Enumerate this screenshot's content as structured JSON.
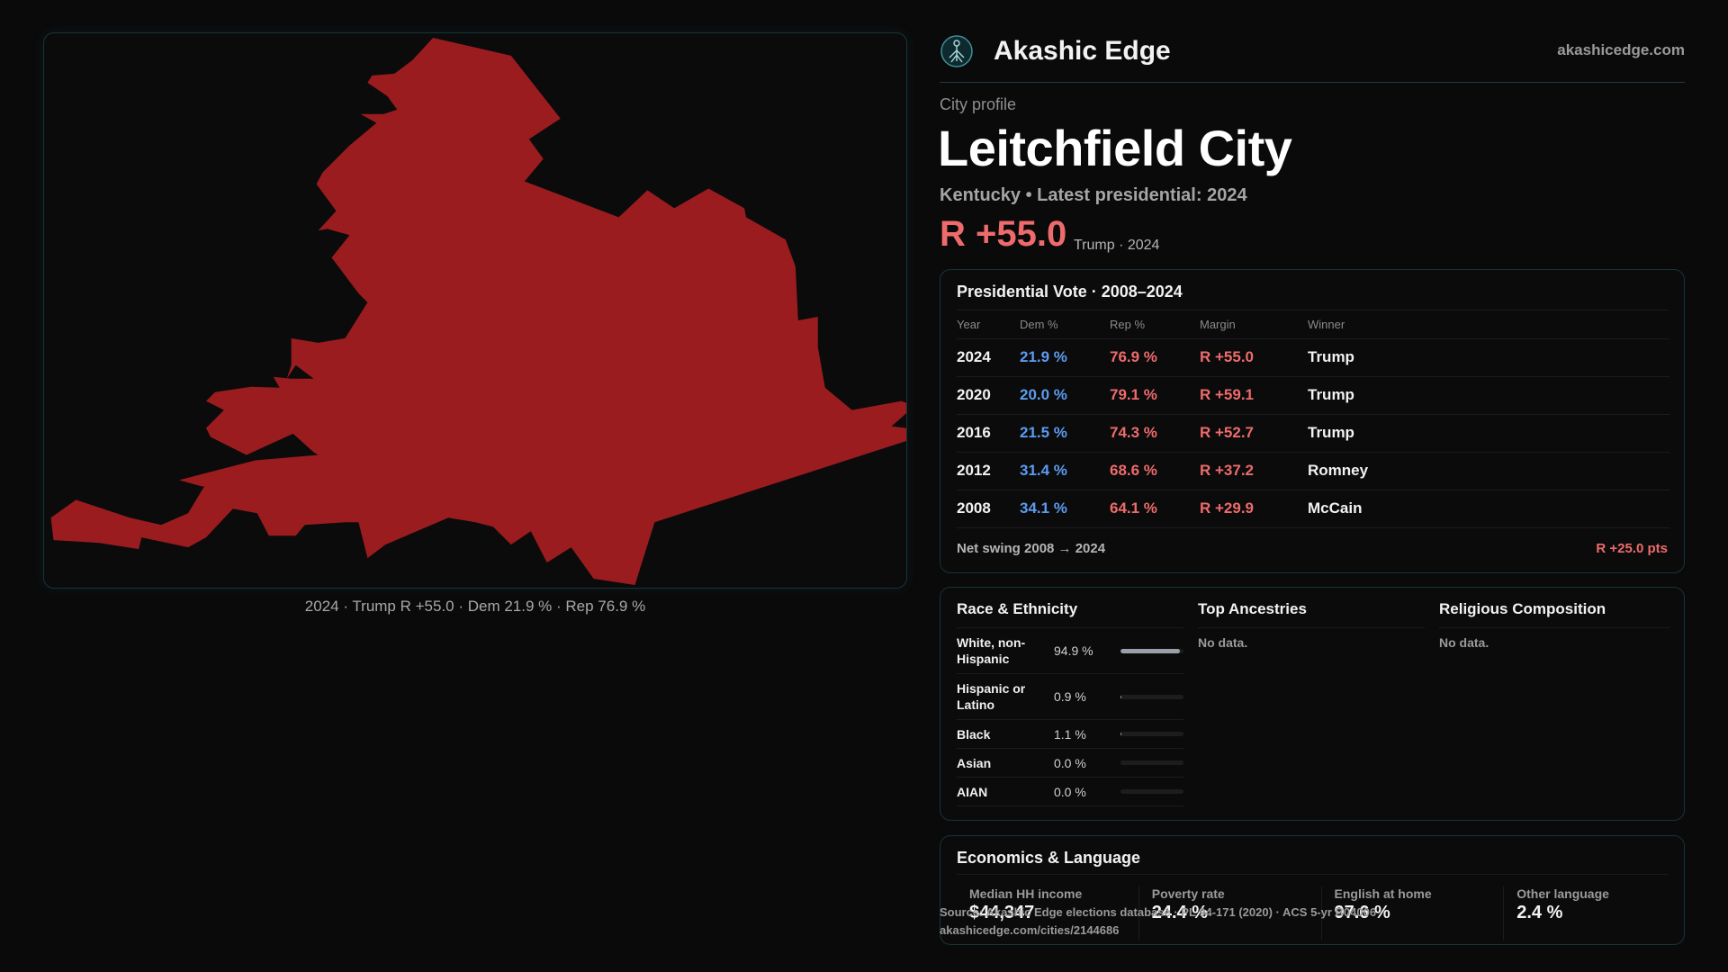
{
  "map": {
    "caption": "2024 · Trump R +55.0 · Dem 21.9 % · Rep 76.9 %",
    "fill_color": "#9b1c1f"
  },
  "header": {
    "logo_icon": "tree-of-life-icon",
    "brand": "Akashic Edge",
    "site": "akashicedge.com"
  },
  "profile": {
    "kicker": "City profile",
    "title": "Leitchfield City",
    "subtitle": "Kentucky • Latest presidential: 2024",
    "margin": "R +55.0",
    "margin_detail": "Trump · 2024",
    "rep_color": "#ee6b6b",
    "dem_color": "#5b9cf0"
  },
  "vote": {
    "title": "Presidential Vote · 2008–2024",
    "headers": [
      "Year",
      "Dem %",
      "Rep %",
      "Margin",
      "Winner"
    ],
    "rows": [
      {
        "year": "2024",
        "dem": "21.9 %",
        "rep": "76.9 %",
        "margin": "R +55.0",
        "winner": "Trump"
      },
      {
        "year": "2020",
        "dem": "20.0 %",
        "rep": "79.1 %",
        "margin": "R +59.1",
        "winner": "Trump"
      },
      {
        "year": "2016",
        "dem": "21.5 %",
        "rep": "74.3 %",
        "margin": "R +52.7",
        "winner": "Trump"
      },
      {
        "year": "2012",
        "dem": "31.4 %",
        "rep": "68.6 %",
        "margin": "R +37.2",
        "winner": "Romney"
      },
      {
        "year": "2008",
        "dem": "34.1 %",
        "rep": "64.1 %",
        "margin": "R +29.9",
        "winner": "McCain"
      }
    ],
    "swing_label": "Net swing 2008 → 2024",
    "swing_value": "R +25.0 pts"
  },
  "race": {
    "title": "Race & Ethnicity",
    "rows": [
      {
        "name": "White, non-Hispanic",
        "pct": "94.9 %",
        "share": 0.949
      },
      {
        "name": "Hispanic or Latino",
        "pct": "0.9 %",
        "share": 0.009
      },
      {
        "name": "Black",
        "pct": "1.1 %",
        "share": 0.011
      },
      {
        "name": "Asian",
        "pct": "0.0 %",
        "share": 0.0
      },
      {
        "name": "AIAN",
        "pct": "0.0 %",
        "share": 0.0
      }
    ]
  },
  "ancestries": {
    "title": "Top Ancestries",
    "empty": "No data."
  },
  "religion": {
    "title": "Religious Composition",
    "empty": "No data."
  },
  "econ": {
    "title": "Economics & Language",
    "cells": [
      {
        "label": "Median HH income",
        "value": "$44,347"
      },
      {
        "label": "Poverty rate",
        "value": "24.4 %"
      },
      {
        "label": "English at home",
        "value": "97.6 %"
      },
      {
        "label": "Other language",
        "value": "2.4 %"
      }
    ]
  },
  "source": {
    "line1": "Source: Akashic Edge elections database · PL 94-171 (2020) · ACS 5-yr B04006",
    "line2": "akashicedge.com/cities/2144686"
  }
}
